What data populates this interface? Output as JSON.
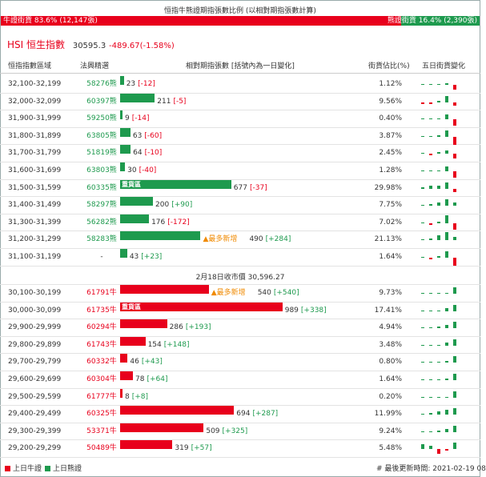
{
  "title": "恒指牛熊證期指張數比例 (以相對期指張數計算)",
  "ratio": {
    "bull_label": "牛證街貨 83.6% (12,147張)",
    "bear_label": "熊證街貨 16.4% (2,390張)",
    "bull_color": "#e8001c",
    "bear_color": "#1e9a4e"
  },
  "index": {
    "name": "HSI 恒生指數",
    "value": "30595.3",
    "change": "-489.67(-1.58%)"
  },
  "headers": {
    "range": "恒指指數區域",
    "code": "法興精選",
    "bar": "相對期指張數 [括號內為一日變化]",
    "pct": "街貨佔比(%)",
    "trend": "五日街貨變化"
  },
  "separator": "2月18日收市價 30,596.27",
  "heavy_tag": "重貨區",
  "bear_rows": [
    {
      "range": "32,100-32,199",
      "code": "58276熊",
      "value": "23",
      "change": "[-12]",
      "pct": "1.12%",
      "spark": [
        0,
        0,
        0,
        1,
        -3
      ]
    },
    {
      "range": "32,000-32,099",
      "code": "60397熊",
      "value": "211",
      "change": "[-5]",
      "pct": "9.56%",
      "spark": [
        -1,
        -1,
        1,
        4,
        -2
      ]
    },
    {
      "range": "31,900-31,999",
      "code": "59250熊",
      "value": "9",
      "change": "[-14]",
      "pct": "0.40%",
      "spark": [
        0,
        0,
        0,
        3,
        -4
      ]
    },
    {
      "range": "31,800-31,899",
      "code": "63805熊",
      "value": "63",
      "change": "[-60]",
      "pct": "3.87%",
      "spark": [
        0,
        0,
        1,
        4,
        -5
      ]
    },
    {
      "range": "31,700-31,799",
      "code": "51819熊",
      "value": "64",
      "change": "[-10]",
      "pct": "2.45%",
      "spark": [
        0,
        -1,
        1,
        2,
        -3
      ]
    },
    {
      "range": "31,600-31,699",
      "code": "63803熊",
      "value": "30",
      "change": "[-40]",
      "pct": "1.28%",
      "spark": [
        0,
        0,
        0,
        3,
        -4
      ]
    },
    {
      "range": "31,500-31,599",
      "code": "60335熊",
      "value": "677",
      "change": "[-37]",
      "pct": "29.98%",
      "heavy": true,
      "spark": [
        1,
        2,
        2,
        4,
        -2
      ]
    },
    {
      "range": "31,400-31,499",
      "code": "58297熊",
      "value": "200",
      "change": "[+90]",
      "pct": "7.75%",
      "spark": [
        0,
        1,
        2,
        4,
        2
      ]
    },
    {
      "range": "31,300-31,399",
      "code": "56282熊",
      "value": "176",
      "change": "[-172]",
      "pct": "7.02%",
      "spark": [
        0,
        -1,
        1,
        5,
        -4
      ]
    },
    {
      "range": "31,200-31,299",
      "code": "58283熊",
      "value": "490",
      "change": "[+284]",
      "pct": "21.13%",
      "note": "最多新增",
      "spark": [
        0,
        1,
        3,
        5,
        2
      ]
    },
    {
      "range": "31,100-31,199",
      "code": "-",
      "value": "43",
      "change": "[+23]",
      "pct": "1.64%",
      "spark": [
        0,
        -1,
        1,
        4,
        -5
      ]
    }
  ],
  "bull_rows": [
    {
      "range": "30,100-30,199",
      "code": "61791牛",
      "value": "540",
      "change": "[+540]",
      "pct": "9.73%",
      "note": "最多新增",
      "spark": [
        0,
        0,
        0,
        0,
        4
      ]
    },
    {
      "range": "30,000-30,099",
      "code": "61735牛",
      "value": "989",
      "change": "[+338]",
      "pct": "17.41%",
      "heavy": true,
      "spark": [
        0,
        0,
        0,
        2,
        4
      ]
    },
    {
      "range": "29,900-29,999",
      "code": "60294牛",
      "value": "286",
      "change": "[+193]",
      "pct": "4.94%",
      "spark": [
        0,
        0,
        1,
        2,
        4
      ]
    },
    {
      "range": "29,800-29,899",
      "code": "61743牛",
      "value": "154",
      "change": "[+148]",
      "pct": "3.48%",
      "spark": [
        0,
        0,
        0,
        2,
        4
      ]
    },
    {
      "range": "29,700-29,799",
      "code": "60332牛",
      "value": "46",
      "change": "[+43]",
      "pct": "0.80%",
      "spark": [
        0,
        0,
        0,
        1,
        4
      ]
    },
    {
      "range": "29,600-29,699",
      "code": "60304牛",
      "value": "78",
      "change": "[+64]",
      "pct": "1.64%",
      "spark": [
        0,
        0,
        0,
        1,
        4
      ]
    },
    {
      "range": "29,500-29,599",
      "code": "61777牛",
      "value": "8",
      "change": "[+8]",
      "pct": "0.20%",
      "spark": [
        0,
        0,
        0,
        0,
        4
      ]
    },
    {
      "range": "29,400-29,499",
      "code": "60325牛",
      "value": "694",
      "change": "[+287]",
      "pct": "11.99%",
      "spark": [
        0,
        1,
        2,
        3,
        4
      ]
    },
    {
      "range": "29,300-29,399",
      "code": "53371牛",
      "value": "509",
      "change": "[+325]",
      "pct": "9.24%",
      "spark": [
        0,
        0,
        1,
        2,
        4
      ]
    },
    {
      "range": "29,200-29,299",
      "code": "50489牛",
      "value": "319",
      "change": "[+57]",
      "pct": "5.48%",
      "spark": [
        3,
        2,
        -3,
        -1,
        4
      ]
    }
  ],
  "footer": {
    "bull_legend": "上日牛證",
    "bear_legend": "上日熊證",
    "updated": "# 最後更新時間: 2021-02-19 08"
  }
}
